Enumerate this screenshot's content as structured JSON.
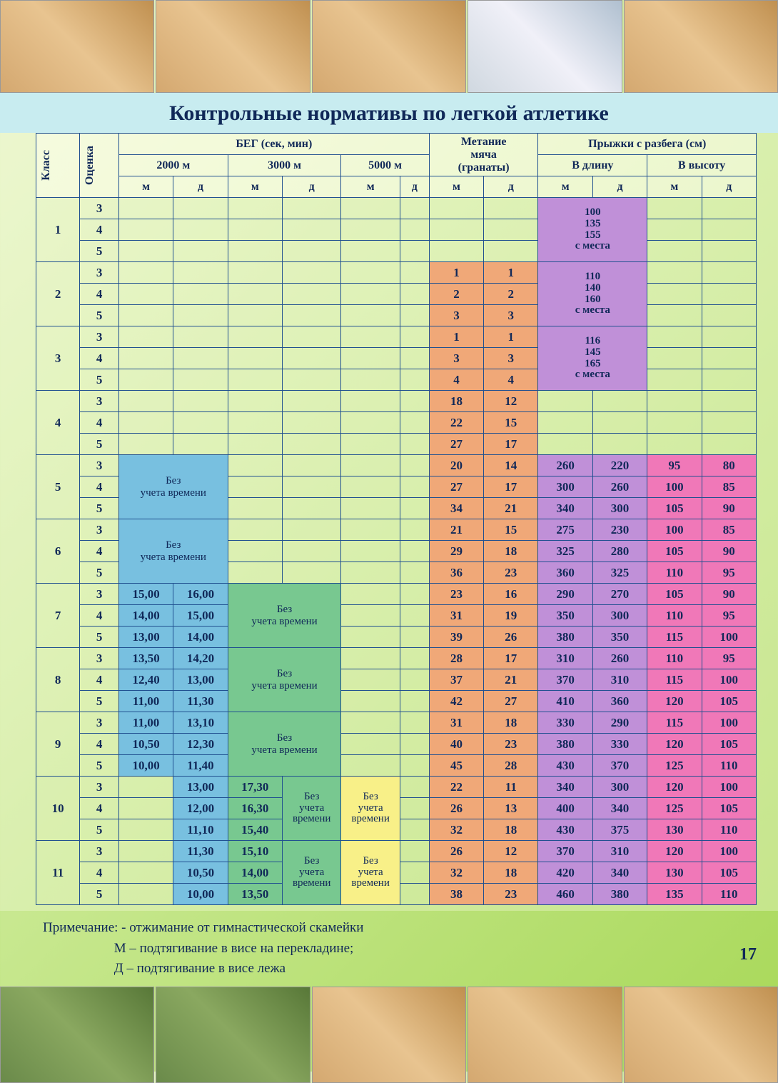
{
  "title": "Контрольные нормативы по легкой атлетике",
  "page_number": "17",
  "header": {
    "klass": "Класс",
    "grade": "Оценка",
    "running": "БЕГ (сек, мин)",
    "d2000": "2000 м",
    "d3000": "3000 м",
    "d5000": "5000 м",
    "throwing_l1": "Метание",
    "throwing_l2": "мяча",
    "throwing_l3": "(гранаты)",
    "jumps": "Прыжки с разбега (см)",
    "long": "В длину",
    "high": "В высоту",
    "m": "м",
    "d": "д"
  },
  "colors": {
    "border": "#205090",
    "title_bg": "#c8ecf0",
    "text": "#102858",
    "blue": "#78c0e0",
    "green": "#78c890",
    "yellow": "#f8f088",
    "orange": "#f0a878",
    "purple": "#c090d8",
    "pink": "#f078b8"
  },
  "labels": {
    "no_time": "Без учета времени",
    "no_time_l1": "Без",
    "no_time_l2": "учета",
    "no_time_l3": "времени",
    "from_place": "с места"
  },
  "place_jumps": {
    "k1": {
      "v1": "100",
      "v2": "135",
      "v3": "155"
    },
    "k2": {
      "v1": "110",
      "v2": "140",
      "v3": "160"
    },
    "k3": {
      "v1": "116",
      "v2": "145",
      "v3": "165"
    }
  },
  "rows": {
    "k1": {
      "grades": [
        "3",
        "4",
        "5"
      ]
    },
    "k2": {
      "grades": [
        "3",
        "4",
        "5"
      ],
      "throw": {
        "m": [
          "1",
          "2",
          "3"
        ],
        "d": [
          "1",
          "2",
          "3"
        ]
      }
    },
    "k3": {
      "grades": [
        "3",
        "4",
        "5"
      ],
      "throw": {
        "m": [
          "1",
          "3",
          "4"
        ],
        "d": [
          "1",
          "3",
          "4"
        ]
      }
    },
    "k4": {
      "grades": [
        "3",
        "4",
        "5"
      ],
      "throw": {
        "m": [
          "18",
          "22",
          "27"
        ],
        "d": [
          "12",
          "15",
          "17"
        ]
      }
    },
    "k5": {
      "grades": [
        "3",
        "4",
        "5"
      ],
      "throw": {
        "m": [
          "20",
          "27",
          "34"
        ],
        "d": [
          "14",
          "17",
          "21"
        ]
      },
      "long": {
        "m": [
          "260",
          "300",
          "340"
        ],
        "d": [
          "220",
          "260",
          "300"
        ]
      },
      "high": {
        "m": [
          "95",
          "100",
          "105"
        ],
        "d": [
          "80",
          "85",
          "90"
        ]
      }
    },
    "k6": {
      "grades": [
        "3",
        "4",
        "5"
      ],
      "throw": {
        "m": [
          "21",
          "29",
          "36"
        ],
        "d": [
          "15",
          "18",
          "23"
        ]
      },
      "long": {
        "m": [
          "275",
          "325",
          "360"
        ],
        "d": [
          "230",
          "280",
          "325"
        ]
      },
      "high": {
        "m": [
          "100",
          "105",
          "110"
        ],
        "d": [
          "85",
          "90",
          "95"
        ]
      }
    },
    "k7": {
      "grades": [
        "3",
        "4",
        "5"
      ],
      "r2000": {
        "m": [
          "15,00",
          "14,00",
          "13,00"
        ],
        "d": [
          "16,00",
          "15,00",
          "14,00"
        ]
      },
      "throw": {
        "m": [
          "23",
          "31",
          "39"
        ],
        "d": [
          "16",
          "19",
          "26"
        ]
      },
      "long": {
        "m": [
          "290",
          "350",
          "380"
        ],
        "d": [
          "270",
          "300",
          "350"
        ]
      },
      "high": {
        "m": [
          "105",
          "110",
          "115"
        ],
        "d": [
          "90",
          "95",
          "100"
        ]
      }
    },
    "k8": {
      "grades": [
        "3",
        "4",
        "5"
      ],
      "r2000": {
        "m": [
          "13,50",
          "12,40",
          "11,00"
        ],
        "d": [
          "14,20",
          "13,00",
          "11,30"
        ]
      },
      "throw": {
        "m": [
          "28",
          "37",
          "42"
        ],
        "d": [
          "17",
          "21",
          "27"
        ]
      },
      "long": {
        "m": [
          "310",
          "370",
          "410"
        ],
        "d": [
          "260",
          "310",
          "360"
        ]
      },
      "high": {
        "m": [
          "110",
          "115",
          "120"
        ],
        "d": [
          "95",
          "100",
          "105"
        ]
      }
    },
    "k9": {
      "grades": [
        "3",
        "4",
        "5"
      ],
      "r2000": {
        "m": [
          "11,00",
          "10,50",
          "10,00"
        ],
        "d": [
          "13,10",
          "12,30",
          "11,40"
        ]
      },
      "throw": {
        "m": [
          "31",
          "40",
          "45"
        ],
        "d": [
          "18",
          "23",
          "28"
        ]
      },
      "long": {
        "m": [
          "330",
          "380",
          "430"
        ],
        "d": [
          "290",
          "330",
          "370"
        ]
      },
      "high": {
        "m": [
          "115",
          "120",
          "125"
        ],
        "d": [
          "100",
          "105",
          "110"
        ]
      }
    },
    "k10": {
      "grades": [
        "3",
        "4",
        "5"
      ],
      "r2000": {
        "d": [
          "13,00",
          "12,00",
          "11,10"
        ]
      },
      "r3000": {
        "m": [
          "17,30",
          "16,30",
          "15,40"
        ]
      },
      "throw": {
        "m": [
          "22",
          "26",
          "32"
        ],
        "d": [
          "11",
          "13",
          "18"
        ]
      },
      "long": {
        "m": [
          "340",
          "400",
          "430"
        ],
        "d": [
          "300",
          "340",
          "375"
        ]
      },
      "high": {
        "m": [
          "120",
          "125",
          "130"
        ],
        "d": [
          "100",
          "105",
          "110"
        ]
      }
    },
    "k11": {
      "grades": [
        "3",
        "4",
        "5"
      ],
      "r2000": {
        "d": [
          "11,30",
          "10,50",
          "10,00"
        ]
      },
      "r3000": {
        "m": [
          "15,10",
          "14,00",
          "13,50"
        ]
      },
      "throw": {
        "m": [
          "26",
          "32",
          "38"
        ],
        "d": [
          "12",
          "18",
          "23"
        ]
      },
      "long": {
        "m": [
          "370",
          "420",
          "460"
        ],
        "d": [
          "310",
          "340",
          "380"
        ]
      },
      "high": {
        "m": [
          "120",
          "130",
          "135"
        ],
        "d": [
          "100",
          "105",
          "110"
        ]
      }
    }
  },
  "notes": {
    "prefix": "Примечание:",
    "l1": "- отжимание от гимнастической скамейки",
    "l2": "М – подтягивание в висе на перекладине;",
    "l3": "Д – подтягивание в висе лежа"
  }
}
